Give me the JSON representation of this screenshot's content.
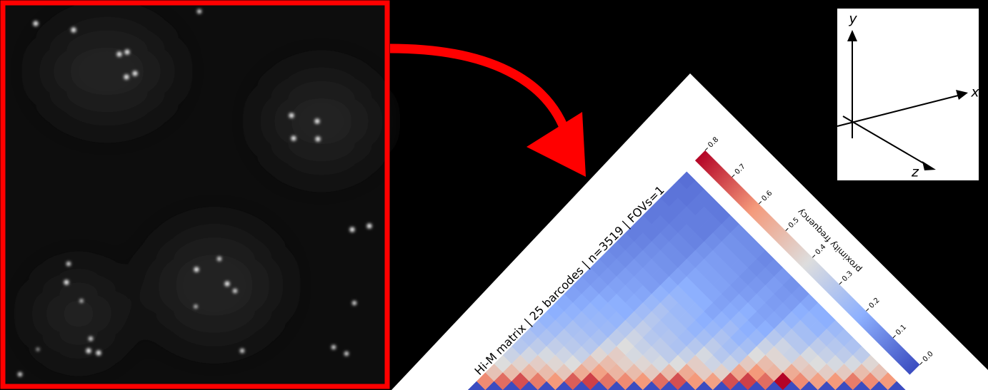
{
  "chart_data": {
    "type": "heatmap",
    "title": "Hi-M matrix | 25 barcodes | n=3519 | FOVs=1",
    "colorbar_label": "proximity frequency",
    "clim": [
      0,
      0.8
    ],
    "cticks": [
      {
        "value": 0,
        "label": "0.0"
      },
      0.1,
      0.2,
      0.3,
      0.4,
      0.5,
      0.6,
      0.7,
      0.8
    ],
    "colormap": [
      "#3b4cc0",
      "#8db0fe",
      "#dddddd",
      "#f49a7b",
      "#b40426"
    ],
    "values": [
      [
        0,
        0.62,
        0.48,
        0.4,
        0.35,
        0.3,
        0.28,
        0.25,
        0.22,
        0.2,
        0.19,
        0.17,
        0.16,
        0.15,
        0.14,
        0.13,
        0.12,
        0.11,
        0.1,
        0.1,
        0.09,
        0.09,
        0.08,
        0.08,
        0.07
      ],
      [
        0,
        0.66,
        0.5,
        0.43,
        0.37,
        0.32,
        0.28,
        0.25,
        0.23,
        0.21,
        0.19,
        0.18,
        0.16,
        0.15,
        0.14,
        0.13,
        0.12,
        0.11,
        0.1,
        0.1,
        0.09,
        0.09,
        0.08,
        0.08
      ],
      [
        0,
        0.7,
        0.52,
        0.45,
        0.38,
        0.33,
        0.3,
        0.27,
        0.24,
        0.22,
        0.2,
        0.18,
        0.17,
        0.16,
        0.15,
        0.14,
        0.13,
        0.12,
        0.11,
        0.1,
        0.1,
        0.09,
        0.09
      ],
      [
        0,
        0.64,
        0.5,
        0.42,
        0.36,
        0.31,
        0.28,
        0.25,
        0.23,
        0.21,
        0.2,
        0.18,
        0.17,
        0.16,
        0.15,
        0.14,
        0.13,
        0.12,
        0.11,
        0.1,
        0.1,
        0.09
      ],
      [
        0,
        0.6,
        0.47,
        0.4,
        0.34,
        0.3,
        0.27,
        0.24,
        0.22,
        0.2,
        0.19,
        0.18,
        0.16,
        0.15,
        0.14,
        0.13,
        0.12,
        0.11,
        0.1,
        0.1,
        0.09
      ],
      [
        0,
        0.68,
        0.55,
        0.48,
        0.42,
        0.36,
        0.32,
        0.3,
        0.27,
        0.25,
        0.23,
        0.21,
        0.19,
        0.17,
        0.16,
        0.15,
        0.14,
        0.13,
        0.12,
        0.11
      ],
      [
        0,
        0.72,
        0.58,
        0.5,
        0.45,
        0.4,
        0.36,
        0.33,
        0.3,
        0.28,
        0.25,
        0.22,
        0.2,
        0.18,
        0.17,
        0.16,
        0.15,
        0.14,
        0.13
      ],
      [
        0,
        0.65,
        0.52,
        0.44,
        0.38,
        0.34,
        0.3,
        0.28,
        0.26,
        0.24,
        0.22,
        0.2,
        0.18,
        0.17,
        0.16,
        0.15,
        0.14,
        0.13
      ],
      [
        0,
        0.62,
        0.5,
        0.42,
        0.36,
        0.32,
        0.29,
        0.26,
        0.24,
        0.22,
        0.2,
        0.18,
        0.17,
        0.16,
        0.15,
        0.14,
        0.13
      ],
      [
        0,
        0.6,
        0.46,
        0.38,
        0.32,
        0.28,
        0.25,
        0.22,
        0.2,
        0.18,
        0.17,
        0.16,
        0.15,
        0.14,
        0.13,
        0.12
      ],
      [
        0,
        0.66,
        0.5,
        0.4,
        0.34,
        0.3,
        0.26,
        0.23,
        0.21,
        0.19,
        0.18,
        0.16,
        0.15,
        0.14,
        0.13
      ],
      [
        0,
        0.7,
        0.55,
        0.45,
        0.38,
        0.32,
        0.28,
        0.25,
        0.22,
        0.2,
        0.18,
        0.17,
        0.16,
        0.15
      ],
      [
        0,
        0.6,
        0.45,
        0.36,
        0.3,
        0.26,
        0.22,
        0.2,
        0.18,
        0.17,
        0.16,
        0.15,
        0.14
      ],
      [
        0,
        0.58,
        0.44,
        0.35,
        0.3,
        0.26,
        0.23,
        0.2,
        0.18,
        0.17,
        0.16,
        0.15
      ],
      [
        0,
        0.7,
        0.56,
        0.46,
        0.4,
        0.35,
        0.3,
        0.26,
        0.22,
        0.2,
        0.18
      ],
      [
        0,
        0.72,
        0.6,
        0.5,
        0.42,
        0.36,
        0.3,
        0.26,
        0.22,
        0.2
      ],
      [
        0,
        0.66,
        0.52,
        0.42,
        0.35,
        0.3,
        0.26,
        0.22,
        0.2
      ],
      [
        0,
        0.8,
        0.55,
        0.45,
        0.38,
        0.32,
        0.28,
        0.24
      ],
      [
        0,
        0.62,
        0.48,
        0.4,
        0.34,
        0.3,
        0.26
      ],
      [
        0,
        0.58,
        0.45,
        0.38,
        0.32,
        0.28
      ],
      [
        0,
        0.6,
        0.46,
        0.38,
        0.32
      ],
      [
        0,
        0.64,
        0.5,
        0.42
      ],
      [
        0,
        0.62,
        0.48
      ],
      [
        0,
        0.6
      ],
      [
        0
      ]
    ]
  },
  "axes_inset": {
    "x": "x",
    "y": "y",
    "z": "z"
  }
}
